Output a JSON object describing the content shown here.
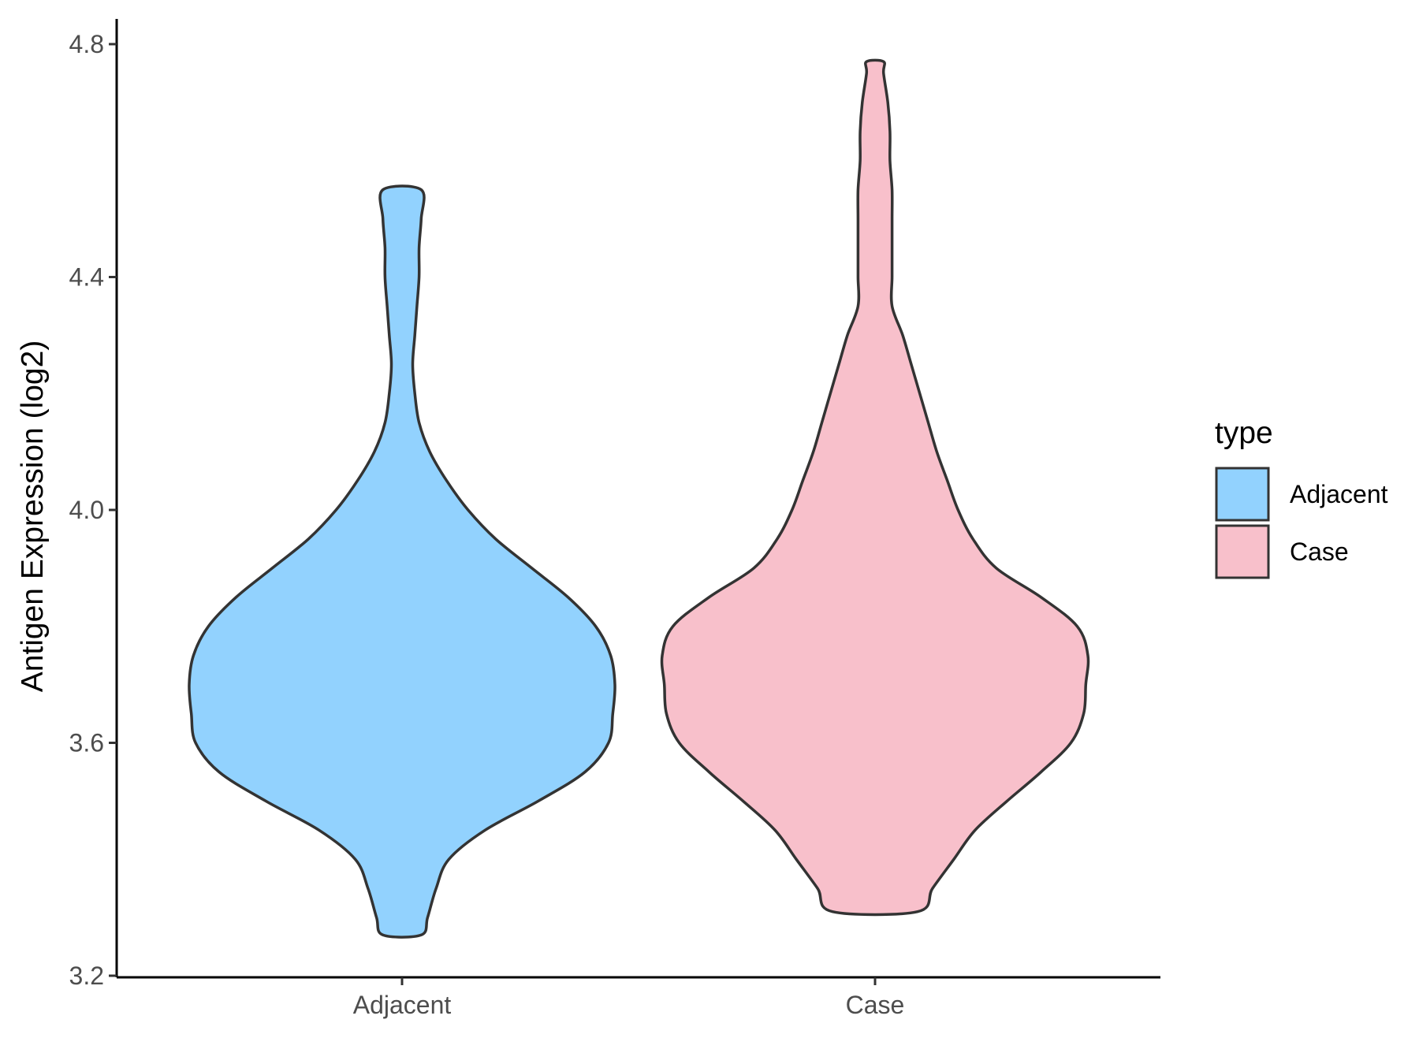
{
  "chart_data": {
    "type": "violin",
    "xlabel": "",
    "ylabel": "Antigen Expression (log2)",
    "categories": [
      "Adjacent",
      "Case"
    ],
    "ylim": [
      3.2,
      4.84
    ],
    "yticks": [
      "3.2",
      "3.6",
      "4.0",
      "4.4",
      "4.8"
    ],
    "grid": false,
    "legend": {
      "title": "type",
      "position": "right",
      "entries": [
        "Adjacent",
        "Case"
      ]
    },
    "colors": {
      "Adjacent": "#92D2FE",
      "Case": "#F8C0CB",
      "outline": "#333333"
    },
    "series": [
      {
        "category": "Adjacent",
        "min": 3.27,
        "max": 4.55,
        "density_profile": [
          [
            3.27,
            0.09
          ],
          [
            3.3,
            0.12
          ],
          [
            3.35,
            0.16
          ],
          [
            3.4,
            0.22
          ],
          [
            3.45,
            0.39
          ],
          [
            3.5,
            0.64
          ],
          [
            3.55,
            0.86
          ],
          [
            3.6,
            0.97
          ],
          [
            3.65,
            0.99
          ],
          [
            3.7,
            1.0
          ],
          [
            3.75,
            0.98
          ],
          [
            3.8,
            0.91
          ],
          [
            3.85,
            0.78
          ],
          [
            3.9,
            0.61
          ],
          [
            3.95,
            0.44
          ],
          [
            4.0,
            0.31
          ],
          [
            4.05,
            0.21
          ],
          [
            4.1,
            0.13
          ],
          [
            4.15,
            0.08
          ],
          [
            4.2,
            0.06
          ],
          [
            4.25,
            0.05
          ],
          [
            4.3,
            0.06
          ],
          [
            4.35,
            0.07
          ],
          [
            4.4,
            0.08
          ],
          [
            4.45,
            0.08
          ],
          [
            4.5,
            0.09
          ],
          [
            4.55,
            0.09
          ]
        ]
      },
      {
        "category": "Case",
        "min": 3.31,
        "max": 4.77,
        "density_profile": [
          [
            3.31,
            0.2
          ],
          [
            3.35,
            0.27
          ],
          [
            3.4,
            0.37
          ],
          [
            3.45,
            0.47
          ],
          [
            3.5,
            0.62
          ],
          [
            3.55,
            0.78
          ],
          [
            3.6,
            0.92
          ],
          [
            3.65,
            0.98
          ],
          [
            3.7,
            0.99
          ],
          [
            3.75,
            1.0
          ],
          [
            3.8,
            0.95
          ],
          [
            3.85,
            0.78
          ],
          [
            3.9,
            0.57
          ],
          [
            3.95,
            0.46
          ],
          [
            4.0,
            0.39
          ],
          [
            4.05,
            0.34
          ],
          [
            4.1,
            0.29
          ],
          [
            4.15,
            0.25
          ],
          [
            4.2,
            0.21
          ],
          [
            4.25,
            0.17
          ],
          [
            4.3,
            0.13
          ],
          [
            4.35,
            0.08
          ],
          [
            4.4,
            0.08
          ],
          [
            4.45,
            0.08
          ],
          [
            4.5,
            0.08
          ],
          [
            4.55,
            0.08
          ],
          [
            4.6,
            0.07
          ],
          [
            4.65,
            0.07
          ],
          [
            4.7,
            0.06
          ],
          [
            4.75,
            0.04
          ],
          [
            4.77,
            0.04
          ]
        ]
      }
    ]
  }
}
